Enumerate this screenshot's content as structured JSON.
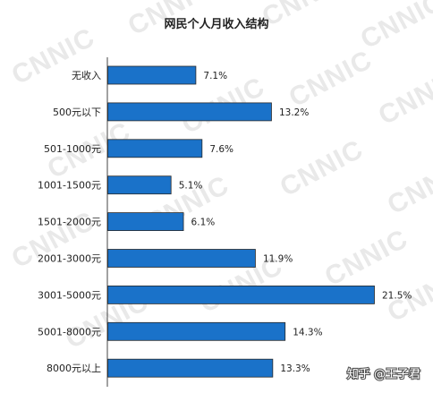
{
  "chart_data": {
    "type": "bar",
    "orientation": "horizontal",
    "title": "网民个人月收入结构",
    "categories": [
      "无收入",
      "500元以下",
      "501-1000元",
      "1001-1500元",
      "1501-2000元",
      "2001-3000元",
      "3001-5000元",
      "5001-8000元",
      "8000元以上"
    ],
    "values": [
      7.1,
      13.2,
      7.6,
      5.1,
      6.1,
      11.9,
      21.5,
      14.3,
      13.3
    ],
    "value_labels": [
      "7.1%",
      "13.2%",
      "7.6%",
      "5.1%",
      "6.1%",
      "11.9%",
      "21.5%",
      "14.3%",
      "13.3%"
    ],
    "xlim": [
      0,
      22
    ],
    "grid": false,
    "bar_color": "#1a72c9"
  },
  "watermark": {
    "text": "CNNIC"
  },
  "credit": {
    "text": "知乎 @王子君"
  }
}
